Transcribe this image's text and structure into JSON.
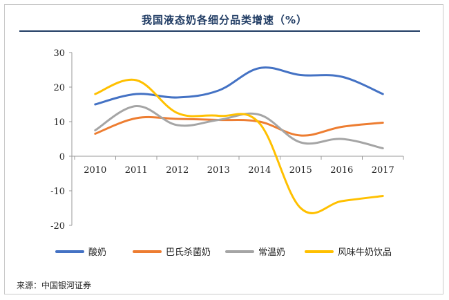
{
  "title": "我国液态奶各细分品类增速（%）",
  "source": "来源：中国银河证券",
  "chart_data": {
    "type": "line",
    "title": "我国液态奶各细分品类增速（%）",
    "x": [
      "2010",
      "2011",
      "2012",
      "2013",
      "2014",
      "2015",
      "2016",
      "2017"
    ],
    "ylim": [
      -20,
      30
    ],
    "yticks": [
      30,
      20,
      10,
      0,
      -10,
      -20
    ],
    "grid": false,
    "legend": "bottom",
    "series": [
      {
        "name": "酸奶",
        "color": "#4472c4",
        "values": [
          15,
          18,
          17,
          19,
          25.5,
          23.5,
          23,
          18
        ]
      },
      {
        "name": "巴氏杀菌奶",
        "color": "#ed7d31",
        "values": [
          6.5,
          11,
          10.8,
          10.5,
          10,
          6,
          8.5,
          9.7
        ]
      },
      {
        "name": "常温奶",
        "color": "#a5a5a5",
        "values": [
          7.5,
          14.5,
          9,
          10.5,
          12,
          4,
          5,
          2.3
        ]
      },
      {
        "name": "风味牛奶饮品",
        "color": "#ffc000",
        "values": [
          18,
          22,
          12.5,
          11.7,
          9.5,
          -15,
          -13,
          -11.5
        ]
      }
    ]
  }
}
